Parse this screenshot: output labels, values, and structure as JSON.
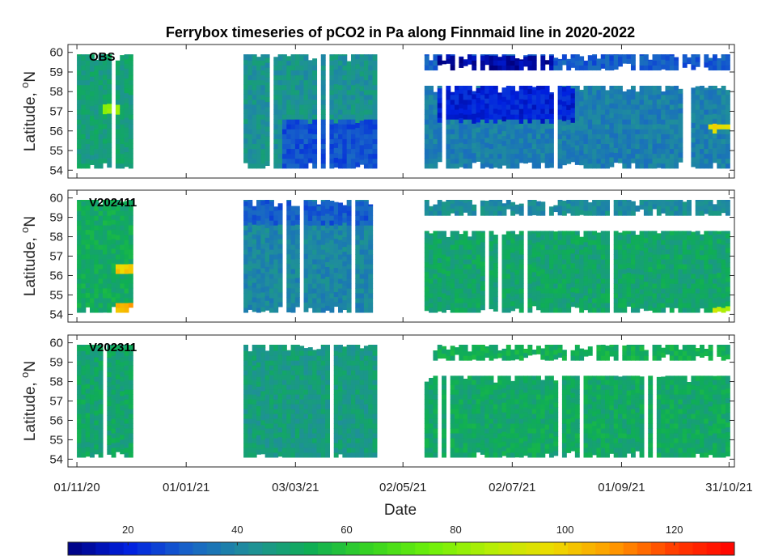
{
  "chart_data": {
    "type": "heatmap",
    "title": "Ferrybox timeseries of pCO2 in Pa along Finnmaid line in 2020-2022",
    "xlabel": "Date",
    "ylabel": "Latitude, ",
    "ylabel_sup": "o",
    "ylabel_unit": "N",
    "x_range": [
      "2020-10-27",
      "2021-11-03"
    ],
    "x_ticks": [
      {
        "date": "2020-11-01",
        "label": "01/11/20"
      },
      {
        "date": "2021-01-01",
        "label": "01/01/21"
      },
      {
        "date": "2021-03-03",
        "label": "03/03/21"
      },
      {
        "date": "2021-05-02",
        "label": "02/05/21"
      },
      {
        "date": "2021-07-02",
        "label": "02/07/21"
      },
      {
        "date": "2021-09-01",
        "label": "01/09/21"
      },
      {
        "date": "2021-10-31",
        "label": "31/10/21"
      }
    ],
    "ylim": [
      53.6,
      60.4
    ],
    "y_ticks": [
      54,
      55,
      56,
      57,
      58,
      59,
      60
    ],
    "grid": false,
    "colorbar": {
      "position": "bottom",
      "range": [
        9,
        131
      ],
      "ticks": [
        20,
        40,
        60,
        80,
        100,
        120
      ],
      "colormap": [
        "#00007f",
        "#0020e0",
        "#1864c8",
        "#1f8f9a",
        "#0fae55",
        "#38d420",
        "#6ef00a",
        "#b7ee05",
        "#eedb00",
        "#ff9a00",
        "#ff3c00",
        "#ff0000"
      ]
    },
    "panels": [
      {
        "name": "OBS",
        "segments": [
          {
            "start": "2020-11-01",
            "end": "2020-12-01",
            "lat": [
              54.1,
              59.9
            ],
            "pco2": 48
          },
          {
            "start": "2021-02-02",
            "end": "2021-04-16",
            "lat": [
              54.1,
              59.9
            ],
            "pco2": 44
          },
          {
            "start": "2021-05-14",
            "end": "2021-10-31",
            "lat": [
              54.1,
              58.3
            ],
            "pco2": 38
          },
          {
            "start": "2021-05-14",
            "end": "2021-10-31",
            "lat": [
              59.1,
              59.9
            ],
            "pco2": 30
          }
        ],
        "features": [
          {
            "period": [
              "2021-02-22",
              "2021-04-16"
            ],
            "lat": [
              54.1,
              56.5
            ],
            "pco2": 28
          },
          {
            "period": [
              "2021-05-20",
              "2021-08-05"
            ],
            "lat": [
              56.5,
              58.3
            ],
            "pco2": 20
          },
          {
            "period": [
              "2021-05-20",
              "2021-07-25"
            ],
            "lat": [
              59.2,
              59.9
            ],
            "pco2": 13
          },
          {
            "period": [
              "2020-11-15",
              "2020-11-25"
            ],
            "lat": [
              56.8,
              57.4
            ],
            "pco2": 82
          },
          {
            "period": [
              "2021-10-18",
              "2021-10-31"
            ],
            "lat": [
              56.0,
              56.4
            ],
            "pco2": 98
          }
        ]
      },
      {
        "name": "V202411",
        "segments": [
          {
            "start": "2020-11-01",
            "end": "2020-12-01",
            "lat": [
              54.1,
              59.9
            ],
            "pco2": 52
          },
          {
            "start": "2021-02-02",
            "end": "2021-04-16",
            "lat": [
              54.1,
              59.9
            ],
            "pco2": 40
          },
          {
            "start": "2021-05-14",
            "end": "2021-10-31",
            "lat": [
              54.1,
              58.3
            ],
            "pco2": 50
          },
          {
            "start": "2021-05-14",
            "end": "2021-10-31",
            "lat": [
              59.1,
              59.9
            ],
            "pco2": 42
          }
        ],
        "features": [
          {
            "period": [
              "2021-02-02",
              "2021-04-16"
            ],
            "lat": [
              58.7,
              59.9
            ],
            "pco2": 30
          },
          {
            "period": [
              "2020-11-20",
              "2020-12-01"
            ],
            "lat": [
              54.1,
              54.5
            ],
            "pco2": 105
          },
          {
            "period": [
              "2020-11-22",
              "2020-12-01"
            ],
            "lat": [
              56.1,
              56.5
            ],
            "pco2": 100
          },
          {
            "period": [
              "2021-10-20",
              "2021-10-31"
            ],
            "lat": [
              54.1,
              54.4
            ],
            "pco2": 88
          }
        ]
      },
      {
        "name": "V202311",
        "segments": [
          {
            "start": "2020-11-01",
            "end": "2020-12-01",
            "lat": [
              54.1,
              59.9
            ],
            "pco2": 50
          },
          {
            "start": "2021-02-02",
            "end": "2021-04-16",
            "lat": [
              54.1,
              59.9
            ],
            "pco2": 47
          },
          {
            "start": "2021-05-14",
            "end": "2021-10-31",
            "lat": [
              54.1,
              58.3
            ],
            "pco2": 51
          },
          {
            "start": "2021-05-14",
            "end": "2021-10-31",
            "lat": [
              59.1,
              59.9
            ],
            "pco2": 53
          }
        ],
        "features": []
      }
    ]
  }
}
